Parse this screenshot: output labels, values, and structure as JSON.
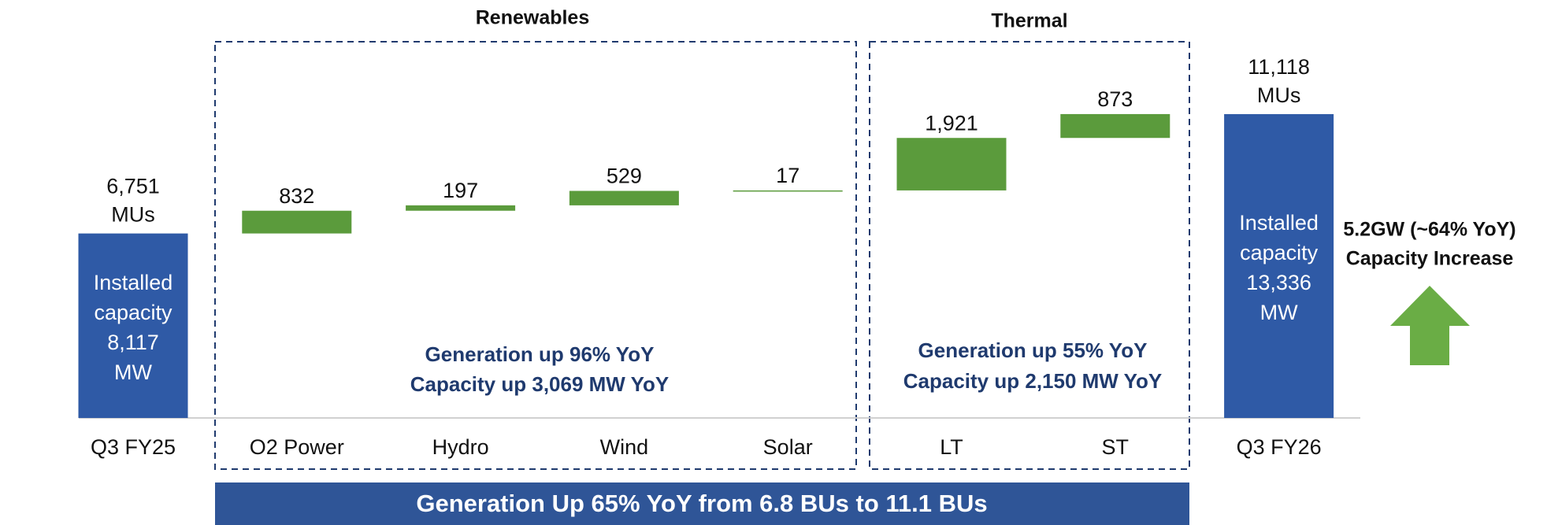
{
  "chart_data": {
    "type": "waterfall",
    "categories": [
      "Q3 FY25",
      "O2 Power",
      "Hydro",
      "Wind",
      "Solar",
      "LT",
      "ST",
      "Q3 FY26"
    ],
    "values": [
      6751,
      832,
      197,
      529,
      17,
      1921,
      873,
      11118
    ],
    "value_labels": [
      "6,751",
      "832",
      "197",
      "529",
      "17",
      "1,921",
      "873",
      "11,118"
    ],
    "measure": [
      "absolute",
      "relative",
      "relative",
      "relative",
      "relative",
      "relative",
      "relative",
      "absolute"
    ],
    "total_unit": "MUs",
    "colors": {
      "absolute": "#2f5aa6",
      "relative": "#5b9b3c"
    },
    "capacity_notes": [
      [
        "Installed",
        "capacity",
        "8,117",
        "MW"
      ],
      null,
      null,
      null,
      null,
      null,
      null,
      [
        "Installed",
        "capacity",
        "13,336",
        "MW"
      ]
    ],
    "groups": [
      {
        "title": "Renewables",
        "annotations": [
          "Generation up 96% YoY",
          "Capacity up 3,069 MW YoY"
        ]
      },
      {
        "title": "Thermal",
        "annotations": [
          "Generation up 55% YoY",
          "Capacity up 2,150 MW YoY"
        ]
      }
    ],
    "banner": "Generation Up 65% YoY from 6.8 BUs to 11.1 BUs",
    "side_note": [
      "5.2GW (~64% YoY)",
      "Capacity Increase"
    ]
  }
}
